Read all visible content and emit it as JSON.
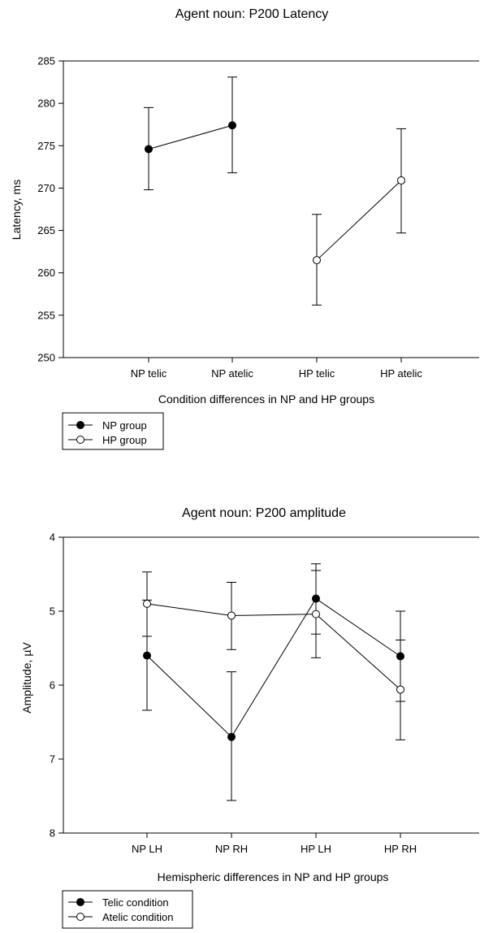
{
  "chart_data": [
    {
      "type": "line",
      "title": "Agent noun: P200 Latency",
      "xlabel": "Condition differences in NP and HP groups",
      "ylabel": "Latency, ms",
      "categories": [
        "NP  telic",
        "NP atelic",
        "HP telic",
        "HP atelic"
      ],
      "ylim": [
        250,
        285
      ],
      "yticks": [
        "250",
        "255",
        "260",
        "265",
        "270",
        "275",
        "280",
        "285"
      ],
      "y_inverted": false,
      "grid": false,
      "legend_position": "bottom-left",
      "series": [
        {
          "name": "NP group",
          "marker": "filled-circle",
          "points": [
            {
              "category": "NP  telic",
              "value": 274.6,
              "err_low": 269.8,
              "err_high": 279.5
            },
            {
              "category": "NP atelic",
              "value": 277.4,
              "err_low": 271.8,
              "err_high": 283.1
            }
          ]
        },
        {
          "name": "HP group",
          "marker": "open-circle",
          "points": [
            {
              "category": "HP telic",
              "value": 261.5,
              "err_low": 256.2,
              "err_high": 266.9
            },
            {
              "category": "HP atelic",
              "value": 270.9,
              "err_low": 264.7,
              "err_high": 277.0
            }
          ]
        }
      ]
    },
    {
      "type": "line",
      "title": "Agent noun: P200 amplitude",
      "xlabel": "Hemispheric differences in NP and HP groups",
      "ylabel": "Amplitude, µV",
      "categories": [
        "NP LH",
        "NP RH",
        "HP LH",
        "HP RH"
      ],
      "ylim": [
        4,
        8
      ],
      "yticks": [
        "4",
        "5",
        "6",
        "7",
        "8"
      ],
      "y_inverted": true,
      "grid": false,
      "legend_position": "bottom-left",
      "series": [
        {
          "name": "Telic condition",
          "marker": "filled-circle",
          "points": [
            {
              "category": "NP LH",
              "value": 5.6,
              "err_low": 4.85,
              "err_high": 6.34
            },
            {
              "category": "NP RH",
              "value": 6.7,
              "err_low": 5.82,
              "err_high": 7.56
            },
            {
              "category": "HP LH",
              "value": 4.83,
              "err_low": 4.36,
              "err_high": 5.31
            },
            {
              "category": "HP RH",
              "value": 5.61,
              "err_low": 5.0,
              "err_high": 6.22
            }
          ]
        },
        {
          "name": "Atelic condition",
          "marker": "open-circle",
          "points": [
            {
              "category": "NP LH",
              "value": 4.9,
              "err_low": 4.47,
              "err_high": 5.34
            },
            {
              "category": "NP RH",
              "value": 5.06,
              "err_low": 4.61,
              "err_high": 5.52
            },
            {
              "category": "HP LH",
              "value": 5.04,
              "err_low": 4.45,
              "err_high": 5.63
            },
            {
              "category": "HP RH",
              "value": 6.06,
              "err_low": 5.39,
              "err_high": 6.74
            }
          ]
        }
      ]
    }
  ]
}
